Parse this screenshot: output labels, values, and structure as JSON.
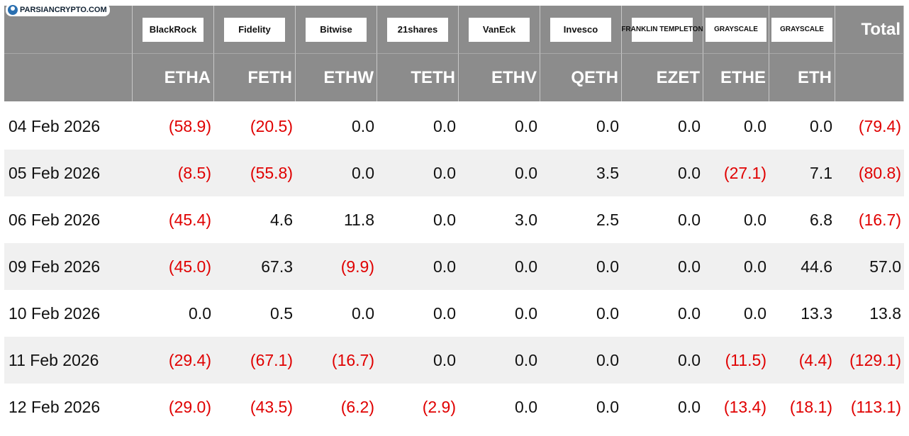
{
  "watermark": "PARSIANCRYPTO.COM",
  "header": {
    "logos": [
      "BlackRock",
      "Fidelity",
      "Bitwise",
      "21shares",
      "VanEck",
      "Invesco",
      "FRANKLIN TEMPLETON",
      "GRAYSCALE",
      "GRAYSCALE"
    ],
    "total": "Total",
    "tickers": [
      "ETHA",
      "FETH",
      "ETHW",
      "TETH",
      "ETHV",
      "QETH",
      "EZET",
      "ETHE",
      "ETH"
    ]
  },
  "table": {
    "rows": [
      [
        "04 Feb 2026",
        "(58.9)",
        "(20.5)",
        "0.0",
        "0.0",
        "0.0",
        "0.0",
        "0.0",
        "0.0",
        "0.0",
        "(79.4)"
      ],
      [
        "05 Feb 2026",
        "(8.5)",
        "(55.8)",
        "0.0",
        "0.0",
        "0.0",
        "3.5",
        "0.0",
        "(27.1)",
        "7.1",
        "(80.8)"
      ],
      [
        "06 Feb 2026",
        "(45.4)",
        "4.6",
        "11.8",
        "0.0",
        "3.0",
        "2.5",
        "0.0",
        "0.0",
        "6.8",
        "(16.7)"
      ],
      [
        "09 Feb 2026",
        "(45.0)",
        "67.3",
        "(9.9)",
        "0.0",
        "0.0",
        "0.0",
        "0.0",
        "0.0",
        "44.6",
        "57.0"
      ],
      [
        "10 Feb 2026",
        "0.0",
        "0.5",
        "0.0",
        "0.0",
        "0.0",
        "0.0",
        "0.0",
        "0.0",
        "13.3",
        "13.8"
      ],
      [
        "11 Feb 2026",
        "(29.4)",
        "(67.1)",
        "(16.7)",
        "0.0",
        "0.0",
        "0.0",
        "0.0",
        "(11.5)",
        "(4.4)",
        "(129.1)"
      ],
      [
        "12 Feb 2026",
        "(29.0)",
        "(43.5)",
        "(6.2)",
        "(2.9)",
        "0.0",
        "0.0",
        "0.0",
        "(13.4)",
        "(18.1)",
        "(113.1)"
      ]
    ]
  }
}
